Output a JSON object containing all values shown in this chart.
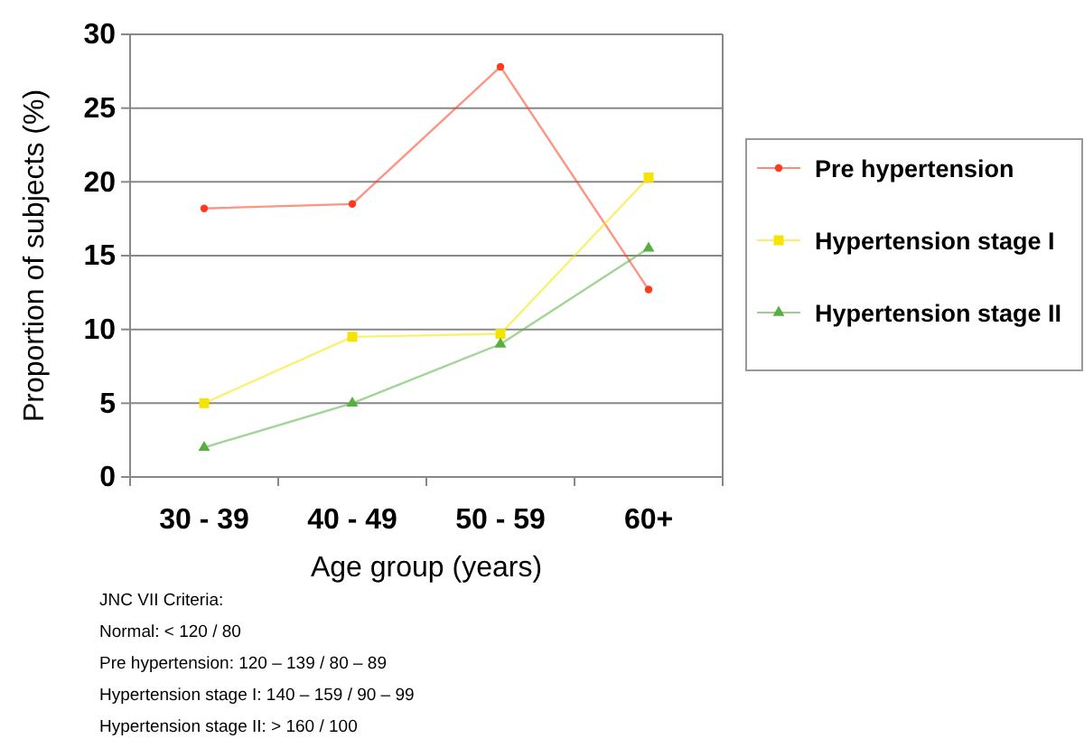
{
  "chart_data": {
    "type": "line",
    "xlabel": "Age group (years)",
    "ylabel": "Proportion of subjects (%)",
    "categories": [
      "30 - 39",
      "40 - 49",
      "50 - 59",
      "60+"
    ],
    "series": [
      {
        "name": "Pre hypertension",
        "color": "#ff3a1f",
        "marker": "circle",
        "values": [
          18.2,
          18.5,
          27.8,
          12.7
        ]
      },
      {
        "name": "Hypertension stage I",
        "color": "#f5e400",
        "marker": "square",
        "values": [
          5,
          9.5,
          9.7,
          20.3
        ]
      },
      {
        "name": "Hypertension stage II",
        "color": "#55b040",
        "marker": "triangle",
        "values": [
          2,
          5,
          9,
          15.5
        ]
      }
    ],
    "ylim": [
      0,
      30
    ],
    "yticks": [
      0,
      5,
      10,
      15,
      20,
      25,
      30
    ],
    "grid": "y",
    "legend": "right",
    "annotations": [
      "JNC VII Criteria:",
      "Normal: < 120 / 80",
      "Pre hypertension: 120 – 139 / 80 – 89",
      "Hypertension stage I: 140 – 159 / 90 – 99",
      "Hypertension stage II: > 160 / 100"
    ]
  }
}
